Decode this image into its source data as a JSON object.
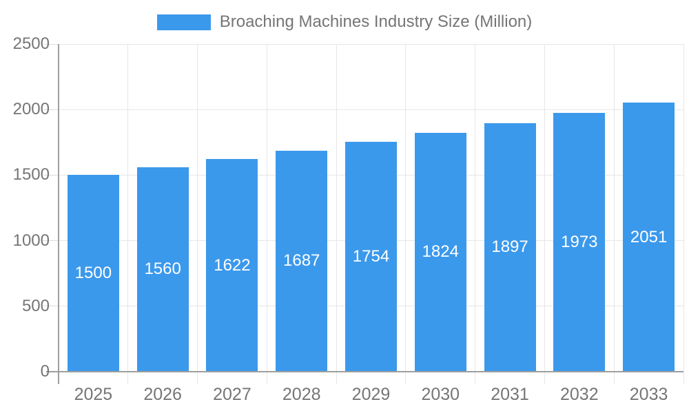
{
  "chart_data": {
    "type": "bar",
    "title": "Broaching Machines Industry Size (Million)",
    "legend_position": "top",
    "categories": [
      "2025",
      "2026",
      "2027",
      "2028",
      "2029",
      "2030",
      "2031",
      "2032",
      "2033"
    ],
    "values": [
      1500,
      1560,
      1622,
      1687,
      1754,
      1824,
      1897,
      1973,
      2051
    ],
    "xlabel": "",
    "ylabel": "",
    "ylim": [
      0,
      2500
    ],
    "yticks": [
      0,
      500,
      1000,
      1500,
      2000,
      2500
    ],
    "grid": true,
    "bar_label_placement": "inside-center",
    "colors": {
      "bar": "#3B99EC",
      "bar_label": "#FFFFFF",
      "axis_text": "#757575",
      "grid": "#E6E6E6",
      "tick": "#DCDCDC",
      "axis_line": "#9E9E9E",
      "background": "#FFFFFF"
    }
  }
}
